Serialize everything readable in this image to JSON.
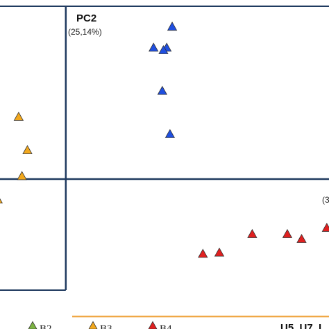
{
  "chart_data": {
    "type": "scatter",
    "axis_y_title": "PC2",
    "axis_y_subtitle": "(25,14%)",
    "axis_x_subtitle_fragment": "(3",
    "x_range": [
      -0.6,
      2.4
    ],
    "y_range": [
      -0.9,
      1.4
    ],
    "grid": false,
    "legend_placement": "bottom",
    "bottom_group_label": "U5, U7, I",
    "bottom_group_color": "#f0a847",
    "axis_color": "#1f3a5f",
    "series": [
      {
        "name": "B2",
        "marker": "triangle",
        "color": "#7cb342",
        "points": []
      },
      {
        "name": "B3",
        "marker": "triangle",
        "color": "#f2a81d",
        "points": [
          {
            "x": -0.43,
            "y": 0.5
          },
          {
            "x": -0.35,
            "y": 0.23
          },
          {
            "x": -0.4,
            "y": 0.02
          },
          {
            "x": -0.62,
            "y": -0.17
          }
        ]
      },
      {
        "name": "",
        "marker": "triangle",
        "color": "#1f4fe0",
        "points": [
          {
            "x": 0.97,
            "y": 1.23
          },
          {
            "x": 0.8,
            "y": 1.06
          },
          {
            "x": 0.92,
            "y": 1.06
          },
          {
            "x": 0.89,
            "y": 1.04
          },
          {
            "x": 0.88,
            "y": 0.71
          },
          {
            "x": 0.95,
            "y": 0.36
          }
        ]
      },
      {
        "name": "B4",
        "marker": "triangle",
        "color": "#e02020",
        "points": [
          {
            "x": 1.25,
            "y": -0.61
          },
          {
            "x": 1.4,
            "y": -0.6
          },
          {
            "x": 1.7,
            "y": -0.45
          },
          {
            "x": 2.02,
            "y": -0.45
          },
          {
            "x": 2.15,
            "y": -0.49
          },
          {
            "x": 2.38,
            "y": -0.4
          }
        ]
      }
    ],
    "legend": [
      {
        "label": "B2",
        "color": "#7cb342"
      },
      {
        "label": "B3",
        "color": "#f2a81d"
      },
      {
        "label": "B4",
        "color": "#e02020"
      }
    ]
  }
}
